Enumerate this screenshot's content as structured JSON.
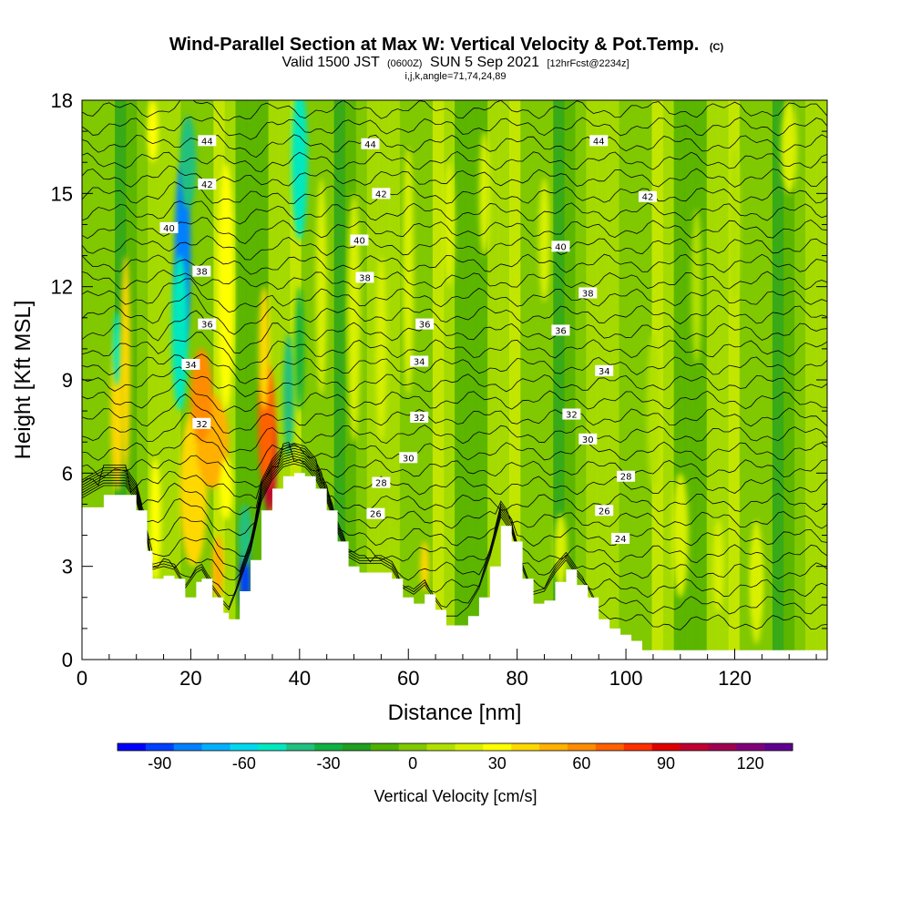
{
  "chart_data": {
    "type": "heatmap",
    "title": "Wind-Parallel Section at Max W: Vertical Velocity & Pot.Temp.",
    "title_mark": "(C)",
    "subtitle_valid": "Valid 1500 JST",
    "subtitle_z": "(0600Z)",
    "subtitle_date": "SUN 5 Sep 2021",
    "subtitle_fcst": "[12hrFcst@2234z]",
    "subtitle_params": "i,j,k,angle=71,74,24,89",
    "xlabel": "Distance [nm]",
    "ylabel": "Height [Kft MSL]",
    "xlim": [
      0,
      137
    ],
    "ylim": [
      0,
      18
    ],
    "xticks": [
      0,
      20,
      40,
      60,
      80,
      100,
      120
    ],
    "yticks": [
      0,
      3,
      6,
      9,
      12,
      15,
      18
    ],
    "colorbar": {
      "title": "Vertical Velocity [cm/s]",
      "ticks": [
        -90,
        -60,
        -30,
        0,
        30,
        60,
        90,
        120
      ],
      "min": -105,
      "max": 135,
      "step": 10,
      "colors": [
        "#0000ff",
        "#0040ff",
        "#0080ff",
        "#00b0ff",
        "#00d8f0",
        "#00e8c0",
        "#20c080",
        "#10b040",
        "#20a020",
        "#50b000",
        "#80c800",
        "#b0e000",
        "#d8f000",
        "#ffff00",
        "#ffd800",
        "#ffb000",
        "#ff8c00",
        "#ff6000",
        "#ff3000",
        "#e00000",
        "#c00030",
        "#a00050",
        "#80007a",
        "#600090"
      ]
    },
    "terrain": {
      "x": [
        0,
        4,
        8,
        10,
        12,
        13,
        15,
        17,
        19,
        21,
        22,
        24,
        26,
        27,
        29,
        31,
        33,
        35,
        37,
        39,
        41,
        43,
        45,
        47,
        49,
        51,
        53,
        55,
        57,
        59,
        61,
        63,
        65,
        67,
        69,
        71,
        73,
        75,
        77,
        79,
        81,
        83,
        85,
        87,
        89,
        91,
        93,
        95,
        97,
        99,
        101,
        103,
        105,
        110,
        115,
        120,
        125,
        130,
        137
      ],
      "height": [
        4.9,
        5.3,
        5.3,
        4.8,
        3.5,
        2.6,
        2.7,
        2.6,
        2.0,
        2.5,
        2.6,
        2.0,
        1.5,
        1.3,
        2.2,
        3.2,
        4.8,
        5.5,
        5.9,
        6.0,
        5.9,
        5.5,
        4.8,
        3.8,
        3.0,
        2.8,
        2.8,
        2.8,
        2.6,
        2.0,
        1.8,
        2.1,
        1.6,
        1.1,
        1.1,
        1.4,
        2.0,
        3.0,
        4.3,
        3.8,
        2.6,
        1.8,
        1.9,
        2.5,
        2.9,
        2.4,
        2.0,
        1.3,
        1.0,
        0.8,
        0.6,
        0.3,
        0.3,
        0.3,
        0.3,
        0.3,
        0.3,
        0.3,
        0.3
      ]
    },
    "cells": [
      {
        "x": 6.5,
        "y": 8.0,
        "rx": 1.2,
        "ry": 2.6,
        "value": 40
      },
      {
        "x": 6.5,
        "y": 10.0,
        "rx": 0.8,
        "ry": 1.2,
        "value": -55
      },
      {
        "x": 8.0,
        "y": 9.5,
        "rx": 0.9,
        "ry": 3.5,
        "value": 35
      },
      {
        "x": 13.5,
        "y": 4.5,
        "rx": 1.0,
        "ry": 2.0,
        "value": 25
      },
      {
        "x": 18.5,
        "y": 13.0,
        "rx": 1.5,
        "ry": 3.0,
        "value": -85
      },
      {
        "x": 18.0,
        "y": 10.5,
        "rx": 1.5,
        "ry": 2.5,
        "value": -50
      },
      {
        "x": 19.5,
        "y": 16.0,
        "rx": 1.5,
        "ry": 1.5,
        "value": -45
      },
      {
        "x": 20.5,
        "y": 5.5,
        "rx": 2.5,
        "ry": 2.5,
        "value": 40
      },
      {
        "x": 24.0,
        "y": 7.0,
        "rx": 3.0,
        "ry": 1.5,
        "value": 45
      },
      {
        "x": 22.0,
        "y": 8.5,
        "rx": 2.0,
        "ry": 1.5,
        "value": 55
      },
      {
        "x": 26.5,
        "y": 12.0,
        "rx": 1.5,
        "ry": 4.0,
        "value": 30
      },
      {
        "x": 26.5,
        "y": 5.5,
        "rx": 1.2,
        "ry": 1.0,
        "value": 30
      },
      {
        "x": 25.0,
        "y": 3.0,
        "rx": 1.0,
        "ry": 1.0,
        "value": 45
      },
      {
        "x": 30.0,
        "y": 2.5,
        "rx": 1.0,
        "ry": 1.0,
        "value": -95
      },
      {
        "x": 30.0,
        "y": 4.0,
        "rx": 1.2,
        "ry": 1.0,
        "value": -45
      },
      {
        "x": 34.5,
        "y": 6.3,
        "rx": 1.2,
        "ry": 1.6,
        "value": 95
      },
      {
        "x": 34.0,
        "y": 7.5,
        "rx": 1.6,
        "ry": 2.0,
        "value": 70
      },
      {
        "x": 33.5,
        "y": 10.0,
        "rx": 1.0,
        "ry": 2.0,
        "value": 35
      },
      {
        "x": 38.0,
        "y": 8.5,
        "rx": 1.0,
        "ry": 2.0,
        "value": -45
      },
      {
        "x": 40.0,
        "y": 16.0,
        "rx": 1.5,
        "ry": 2.5,
        "value": -55
      },
      {
        "x": 40.0,
        "y": 10.0,
        "rx": 0.8,
        "ry": 2.0,
        "value": -35
      },
      {
        "x": 44.0,
        "y": 12.0,
        "rx": 1.0,
        "ry": 3.5,
        "value": 20
      },
      {
        "x": 50.0,
        "y": 11.0,
        "rx": 1.2,
        "ry": 4.0,
        "value": 20
      },
      {
        "x": 55.0,
        "y": 10.0,
        "rx": 1.0,
        "ry": 3.0,
        "value": 20
      },
      {
        "x": 63.0,
        "y": 3.0,
        "rx": 0.8,
        "ry": 0.8,
        "value": 35
      },
      {
        "x": 60.0,
        "y": 12.5,
        "rx": 1.0,
        "ry": 4.0,
        "value": 15
      },
      {
        "x": 67.5,
        "y": 14.0,
        "rx": 1.0,
        "ry": 2.0,
        "value": 20
      },
      {
        "x": 74.0,
        "y": 15.0,
        "rx": 1.0,
        "ry": 2.0,
        "value": 15
      },
      {
        "x": 85.0,
        "y": 13.5,
        "rx": 1.0,
        "ry": 2.0,
        "value": 20
      },
      {
        "x": 88.0,
        "y": 3.5,
        "rx": 1.2,
        "ry": 1.2,
        "value": 20
      },
      {
        "x": 105.0,
        "y": 8.0,
        "rx": 1.2,
        "ry": 2.5,
        "value": 12
      },
      {
        "x": 110.0,
        "y": 4.0,
        "rx": 1.5,
        "ry": 2.0,
        "value": 15
      },
      {
        "x": 117.0,
        "y": 3.0,
        "rx": 1.0,
        "ry": 1.5,
        "value": 15
      },
      {
        "x": 124.0,
        "y": 2.5,
        "rx": 0.8,
        "ry": 1.2,
        "value": 32
      },
      {
        "x": 124.0,
        "y": 2.5,
        "rx": 1.2,
        "ry": 2.0,
        "value": 18
      },
      {
        "x": 113.0,
        "y": 12.0,
        "rx": 1.0,
        "ry": 2.5,
        "value": 12
      },
      {
        "x": 120.0,
        "y": 14.0,
        "rx": 1.0,
        "ry": 2.5,
        "value": 12
      },
      {
        "x": 130.0,
        "y": 16.5,
        "rx": 1.5,
        "ry": 1.5,
        "value": 20
      },
      {
        "x": 13.0,
        "y": 17.0,
        "rx": 1.0,
        "ry": 1.0,
        "value": 30
      }
    ],
    "isentrope_labels": [
      {
        "text": "44",
        "x": 23.0,
        "y": 16.7
      },
      {
        "text": "44",
        "x": 53.0,
        "y": 16.6
      },
      {
        "text": "44",
        "x": 95.0,
        "y": 16.7
      },
      {
        "text": "42",
        "x": 23.0,
        "y": 15.3
      },
      {
        "text": "42",
        "x": 55.0,
        "y": 15.0
      },
      {
        "text": "42",
        "x": 104.0,
        "y": 14.9
      },
      {
        "text": "40",
        "x": 16.0,
        "y": 13.9
      },
      {
        "text": "40",
        "x": 51.0,
        "y": 13.5
      },
      {
        "text": "40",
        "x": 88.0,
        "y": 13.3
      },
      {
        "text": "38",
        "x": 22.0,
        "y": 12.5
      },
      {
        "text": "38",
        "x": 52.0,
        "y": 12.3
      },
      {
        "text": "38",
        "x": 93.0,
        "y": 11.8
      },
      {
        "text": "36",
        "x": 23.0,
        "y": 10.8
      },
      {
        "text": "36",
        "x": 63.0,
        "y": 10.8
      },
      {
        "text": "36",
        "x": 88.0,
        "y": 10.6
      },
      {
        "text": "34",
        "x": 20.0,
        "y": 9.5
      },
      {
        "text": "34",
        "x": 62.0,
        "y": 9.6
      },
      {
        "text": "34",
        "x": 96.0,
        "y": 9.3
      },
      {
        "text": "32",
        "x": 22.0,
        "y": 7.6
      },
      {
        "text": "32",
        "x": 62.0,
        "y": 7.8
      },
      {
        "text": "32",
        "x": 90.0,
        "y": 7.9
      },
      {
        "text": "30",
        "x": 60.0,
        "y": 6.5
      },
      {
        "text": "30",
        "x": 93.0,
        "y": 7.1
      },
      {
        "text": "28",
        "x": 55.0,
        "y": 5.7
      },
      {
        "text": "28",
        "x": 100.0,
        "y": 5.9
      },
      {
        "text": "26",
        "x": 54.0,
        "y": 4.7
      },
      {
        "text": "26",
        "x": 96.0,
        "y": 4.8
      },
      {
        "text": "24",
        "x": 99.0,
        "y": 3.9
      }
    ]
  }
}
